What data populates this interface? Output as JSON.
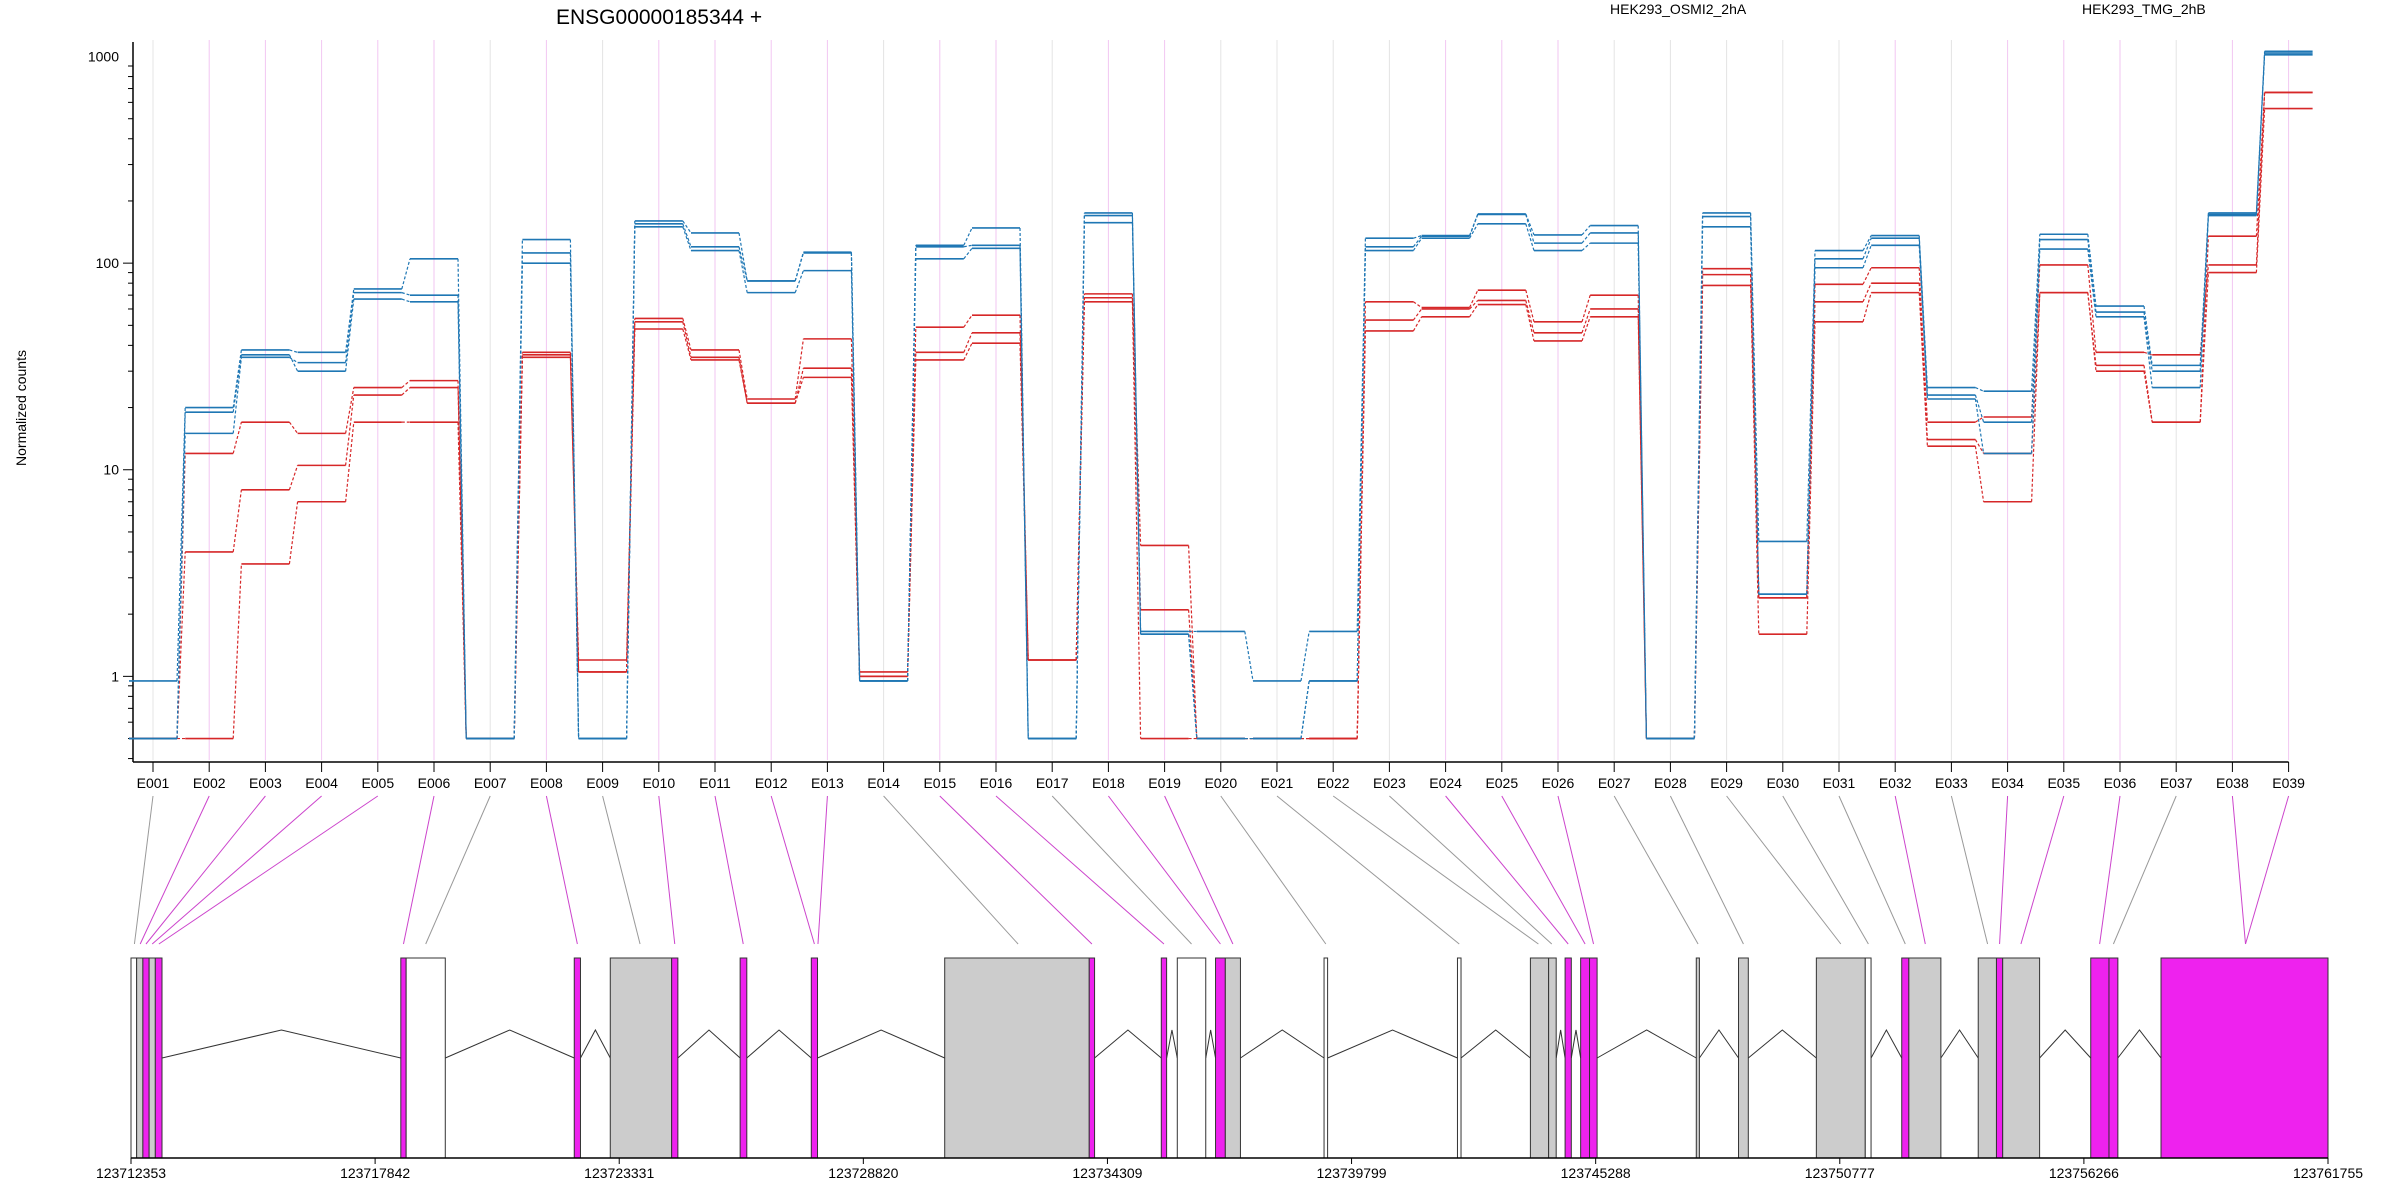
{
  "chart_data": {
    "type": "line",
    "title": "ENSG00000185344 +",
    "ylabel": "Normalized counts",
    "xlabel": "",
    "y_scale": "log",
    "ylim": [
      0.4,
      1150
    ],
    "y_ticks": [
      1,
      10,
      100,
      1000
    ],
    "y_tick_labels": [
      "1",
      "10",
      "100",
      "1000"
    ],
    "grid": false,
    "legend_placement": "top",
    "colors": {
      "condition_a": "#d62728",
      "condition_b": "#1f77b4",
      "highlight": "#ee22ee",
      "exon_gray": "#cccccc"
    },
    "categories": [
      "E001",
      "E002",
      "E003",
      "E004",
      "E005",
      "E006",
      "E007",
      "E008",
      "E009",
      "E010",
      "E011",
      "E012",
      "E013",
      "E014",
      "E015",
      "E016",
      "E017",
      "E018",
      "E019",
      "E020",
      "E021",
      "E022",
      "E023",
      "E024",
      "E025",
      "E026",
      "E027",
      "E028",
      "E029",
      "E030",
      "E031",
      "E032",
      "E033",
      "E034",
      "E035",
      "E036",
      "E037",
      "E038",
      "E039"
    ],
    "series": [
      {
        "name": "HEK293_OSMI2_2hA",
        "color": "#d62728",
        "values": [
          0.5,
          12,
          17,
          15,
          25,
          27,
          0.5,
          37,
          1.2,
          54,
          38,
          22,
          43,
          1.05,
          49,
          56,
          1.2,
          71,
          4.3,
          0.5,
          0.5,
          0.5,
          65,
          61,
          74,
          52,
          70,
          0.5,
          94,
          2.4,
          79,
          95,
          17,
          18,
          98,
          37,
          36,
          98,
          670
        ]
      },
      {
        "name": "HEK293_OSMI2_2hA",
        "color": "#d62728",
        "values": [
          0.5,
          4,
          8,
          10.5,
          23,
          25,
          0.5,
          36,
          1.05,
          52,
          35,
          21,
          31,
          1.0,
          37,
          46,
          1.2,
          68,
          2.1,
          0.5,
          0.5,
          0.5,
          53,
          60,
          66,
          46,
          60,
          0.5,
          88,
          2.4,
          65,
          80,
          14,
          12,
          72,
          32,
          17,
          90,
          560
        ]
      },
      {
        "name": "HEK293_OSMI2_2hA",
        "color": "#d62728",
        "values": [
          0.5,
          0.5,
          3.5,
          7,
          17,
          17,
          0.5,
          35,
          1.05,
          48,
          34,
          21,
          28,
          1.0,
          34,
          41,
          1.2,
          65,
          0.5,
          0.5,
          0.5,
          0.5,
          47,
          55,
          63,
          42,
          55,
          0.5,
          78,
          1.6,
          52,
          72,
          13,
          7,
          72,
          30,
          17,
          135,
          670
        ]
      },
      {
        "name": "HEK293_TMG_2hB",
        "color": "#1f77b4",
        "values": [
          0.95,
          20,
          38,
          37,
          75,
          105,
          0.5,
          130,
          0.5,
          160,
          140,
          82,
          113,
          0.95,
          122,
          148,
          0.5,
          175,
          1.65,
          1.65,
          0.95,
          1.65,
          132,
          136,
          173,
          137,
          152,
          0.5,
          175,
          4.5,
          115,
          136,
          25,
          24,
          138,
          62,
          32,
          175,
          1060
        ]
      },
      {
        "name": "HEK293_TMG_2hB",
        "color": "#1f77b4",
        "values": [
          0.5,
          15,
          35,
          33,
          72,
          70,
          0.5,
          112,
          0.5,
          155,
          120,
          82,
          112,
          0.95,
          120,
          122,
          0.5,
          170,
          1.6,
          0.5,
          0.5,
          0.95,
          120,
          135,
          172,
          125,
          140,
          0.5,
          168,
          2.5,
          105,
          132,
          23,
          17,
          130,
          58,
          30,
          172,
          1040
        ]
      },
      {
        "name": "HEK293_TMG_2hB",
        "color": "#1f77b4",
        "values": [
          0.5,
          19,
          36,
          30,
          67,
          65,
          0.5,
          100,
          0.5,
          150,
          115,
          72,
          92,
          0.95,
          105,
          118,
          0.5,
          157,
          1.6,
          0.5,
          0.5,
          0.95,
          115,
          132,
          155,
          115,
          125,
          0.5,
          150,
          2.5,
          95,
          122,
          22,
          12,
          117,
          55,
          25,
          170,
          1020
        ]
      }
    ],
    "legend": [
      {
        "label": "HEK293_OSMI2_2hA",
        "color": "#d62728"
      },
      {
        "label": "HEK293_TMG_2hB",
        "color": "#1f77b4"
      }
    ],
    "genomic_ticks": [
      "123712353",
      "123717842",
      "123723331",
      "123728820",
      "123734309",
      "123739799",
      "123745288",
      "123750777",
      "123756266",
      "123761755"
    ],
    "genome_range": [
      123712353,
      123761755
    ],
    "highlighted_exons": [
      "E002",
      "E003",
      "E004",
      "E005",
      "E006",
      "E008",
      "E010",
      "E011",
      "E012",
      "E013",
      "E015",
      "E016",
      "E018",
      "E019",
      "E024",
      "E025",
      "E026",
      "E032",
      "E034",
      "E035",
      "E036",
      "E038",
      "E039"
    ]
  }
}
